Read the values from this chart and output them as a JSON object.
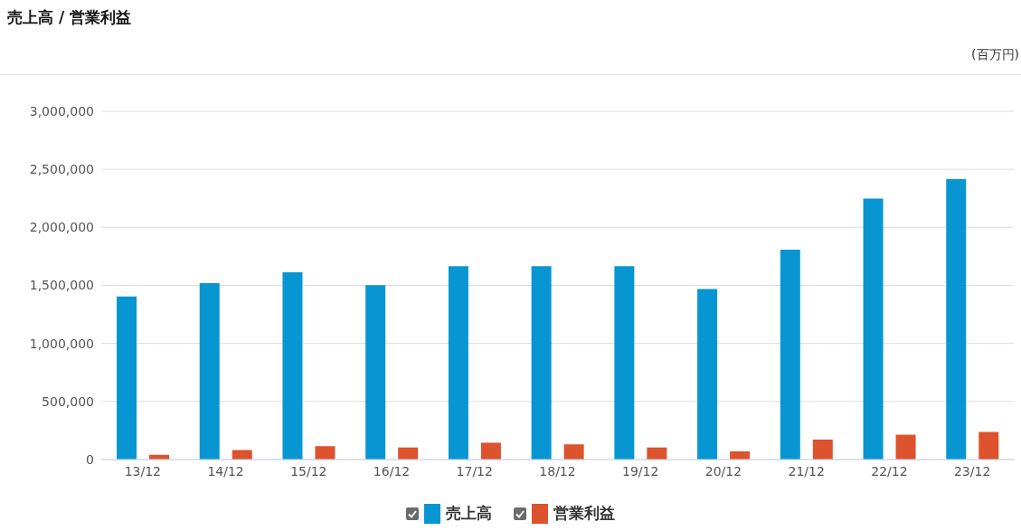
{
  "chart_data": {
    "type": "bar",
    "title": "売上高 / 営業利益",
    "annotations": [
      "(百万円)"
    ],
    "categories": [
      "13/12",
      "14/12",
      "15/12",
      "16/12",
      "17/12",
      "18/12",
      "19/12",
      "20/12",
      "21/12",
      "22/12",
      "23/12"
    ],
    "series": [
      {
        "name": "売上高",
        "color": "#0796d2",
        "values": [
          1405000,
          1520000,
          1613000,
          1501000,
          1665000,
          1665000,
          1665000,
          1468000,
          1807000,
          2248000,
          2415000
        ]
      },
      {
        "name": "営業利益",
        "color": "#dc532d",
        "values": [
          41000,
          82000,
          115000,
          104000,
          145000,
          131000,
          104000,
          71000,
          172000,
          214000,
          238000
        ]
      }
    ],
    "ylim": [
      0,
      3000000
    ],
    "yticks": [
      0,
      {
        "value": 500000,
        "label": "500,000"
      },
      {
        "value": 1000000,
        "label": "1,000,000"
      },
      {
        "value": 1500000,
        "label": "1,500,000"
      },
      {
        "value": 2000000,
        "label": "2,000,000"
      },
      {
        "value": 2500000,
        "label": "2,500,000"
      },
      {
        "value": 3000000,
        "label": "3,000,000"
      }
    ],
    "grid": "y",
    "legend": "bottom"
  }
}
